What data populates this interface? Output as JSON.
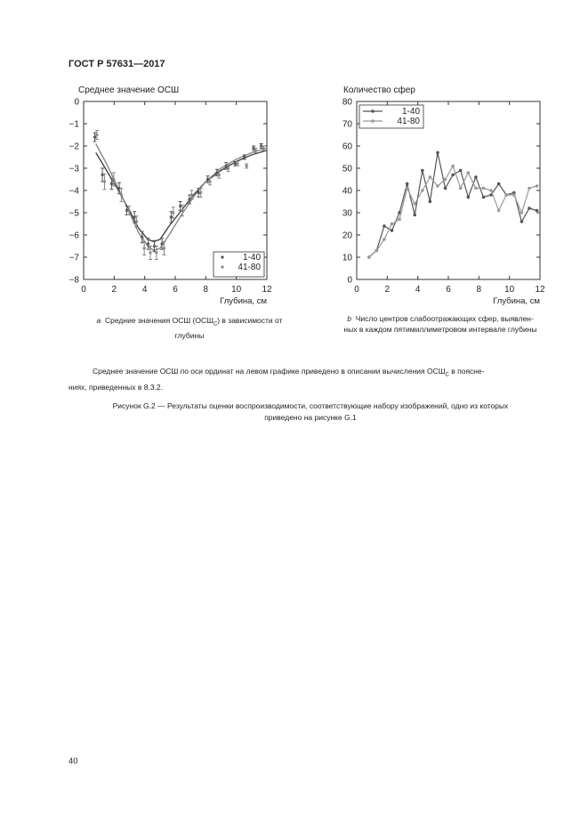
{
  "header": {
    "doc_id": "ГОСТ Р 57631—2017"
  },
  "chart_data": [
    {
      "type": "scatter",
      "title": "Среднее значение ОСШ",
      "xlabel": "Глубина, см",
      "ylabel": "",
      "xlim": [
        0,
        12
      ],
      "ylim": [
        -8,
        0
      ],
      "xticks": [
        "0",
        "2",
        "4",
        "6",
        "8",
        "10",
        "12"
      ],
      "yticks": [
        "0",
        "−1",
        "−2",
        "−3",
        "−4",
        "−5",
        "−6",
        "−7",
        "−8"
      ],
      "legend": {
        "position": "bottom-right",
        "entries": [
          "1-40",
          "41-80"
        ]
      },
      "series": [
        {
          "name": "1-40",
          "color": "#555555",
          "x": [
            0.8,
            1.3,
            1.9,
            2.4,
            2.9,
            3.4,
            3.9,
            4.3,
            4.7,
            5.2,
            5.8,
            6.4,
            7.0,
            7.6,
            8.2,
            8.8,
            9.4,
            10.0,
            10.6,
            11.2,
            11.7
          ],
          "y": [
            -1.6,
            -3.3,
            -3.7,
            -3.9,
            -4.9,
            -5.2,
            -6.1,
            -6.4,
            -6.5,
            -6.4,
            -5.2,
            -4.7,
            -4.4,
            -4.1,
            -3.5,
            -3.2,
            -2.9,
            -2.8,
            -2.5,
            -2.1,
            -2.0
          ],
          "err": [
            0.2,
            0.3,
            0.25,
            0.25,
            0.2,
            0.25,
            0.25,
            0.25,
            0.25,
            0.25,
            0.25,
            0.2,
            0.2,
            0.2,
            0.15,
            0.15,
            0.15,
            0.1,
            0.1,
            0.1,
            0.1
          ]
        },
        {
          "name": "41-80",
          "color": "#888888",
          "x": [
            0.8,
            1.3,
            1.9,
            2.4,
            2.9,
            3.4,
            3.9,
            4.3,
            4.7,
            5.2,
            5.8,
            6.4,
            7.0,
            7.6,
            8.2,
            8.8,
            9.4,
            10.0,
            10.6,
            11.2,
            11.7
          ],
          "y": [
            -1.5,
            -3.6,
            -3.5,
            -4.2,
            -4.9,
            -5.4,
            -6.6,
            -6.8,
            -6.8,
            -6.6,
            -5.0,
            -4.9,
            -4.2,
            -4.1,
            -3.6,
            -3.3,
            -3.0,
            -2.8,
            -2.9,
            -2.2,
            -2.1
          ],
          "err": [
            0.2,
            0.35,
            0.3,
            0.3,
            0.2,
            0.25,
            0.3,
            0.3,
            0.3,
            0.3,
            0.25,
            0.25,
            0.2,
            0.2,
            0.15,
            0.15,
            0.15,
            0.1,
            0.1,
            0.1,
            0.1
          ]
        }
      ],
      "fits": [
        {
          "name": "1-40",
          "color": "#444444",
          "x": [
            0.8,
            1.5,
            2.2,
            3.0,
            3.6,
            4.2,
            4.6,
            5.0,
            5.6,
            6.4,
            7.2,
            8.0,
            9.0,
            10.0,
            11.0,
            12.0
          ],
          "y": [
            -2.3,
            -3.1,
            -3.9,
            -4.9,
            -5.7,
            -6.2,
            -6.3,
            -6.2,
            -5.6,
            -4.9,
            -4.2,
            -3.6,
            -3.1,
            -2.7,
            -2.4,
            -2.2
          ]
        },
        {
          "name": "41-80",
          "color": "#888888",
          "x": [
            0.8,
            1.5,
            2.2,
            3.0,
            3.6,
            4.2,
            4.6,
            5.0,
            5.6,
            6.4,
            7.2,
            8.0,
            9.0,
            10.0,
            11.0,
            12.0
          ],
          "y": [
            -1.9,
            -2.8,
            -3.8,
            -5.0,
            -5.9,
            -6.5,
            -6.7,
            -6.6,
            -6.0,
            -5.1,
            -4.3,
            -3.6,
            -3.0,
            -2.6,
            -2.3,
            -2.1
          ]
        }
      ]
    },
    {
      "type": "line",
      "title": "Количество сфер",
      "xlabel": "Глубина, см",
      "ylabel": "",
      "xlim": [
        0,
        12
      ],
      "ylim": [
        0,
        80
      ],
      "xticks": [
        "0",
        "2",
        "4",
        "6",
        "8",
        "10",
        "12"
      ],
      "yticks": [
        "80",
        "70",
        "60",
        "50",
        "40",
        "30",
        "20",
        "10",
        "0"
      ],
      "legend": {
        "position": "top-left",
        "entries": [
          "1-40",
          "41-80"
        ]
      },
      "series": [
        {
          "name": "1-40",
          "color": "#555555",
          "x": [
            0.8,
            1.3,
            1.8,
            2.3,
            2.8,
            3.3,
            3.8,
            4.3,
            4.8,
            5.3,
            5.8,
            6.3,
            6.8,
            7.3,
            7.8,
            8.3,
            8.8,
            9.3,
            9.8,
            10.3,
            10.8,
            11.3,
            11.8
          ],
          "y": [
            10,
            13,
            24,
            22,
            30,
            43,
            29,
            49,
            35,
            57,
            41,
            47,
            49,
            37,
            46,
            37,
            38,
            43,
            38,
            39,
            26,
            32,
            31
          ]
        },
        {
          "name": "41-80",
          "color": "#999999",
          "x": [
            0.8,
            1.3,
            1.8,
            2.3,
            2.8,
            3.3,
            3.8,
            4.3,
            4.8,
            5.3,
            5.8,
            6.3,
            6.8,
            7.3,
            7.8,
            8.3,
            8.8,
            9.3,
            9.8,
            10.3,
            10.8,
            11.3,
            11.8
          ],
          "y": [
            10,
            13,
            18,
            25,
            27,
            41,
            34,
            40,
            46,
            42,
            45,
            51,
            41,
            48,
            41,
            41,
            40,
            31,
            38,
            38,
            30,
            41,
            42
          ]
        }
      ]
    }
  ],
  "captions": {
    "a_letter": "а",
    "a_text_before": "Средние значения ОСШ (ОСШ",
    "a_sub": "С",
    "a_text_after": ") в зависимости от",
    "a_line2": "глубины",
    "b_letter": "b",
    "b_line1": "Число центров слабоотражающих сфер, выявлен-",
    "b_line2": "ных в каждом пятимиллиметровом интервале глубины"
  },
  "note": {
    "line1_before": "Среднее значение ОСШ по оси ординат на левом графике приведено в описании вычисления ОСШ",
    "line1_sub": "С",
    "line1_after": " в поясне-",
    "line2": "ниях, приведенных в 8.3.2."
  },
  "figure_caption": {
    "line1": "Рисунок G.2 — Результаты оценки воспроизводимости, соответствующие набору изображений, одно из которых",
    "line2": "приведено на рисунке G.1"
  },
  "page_number": "40"
}
